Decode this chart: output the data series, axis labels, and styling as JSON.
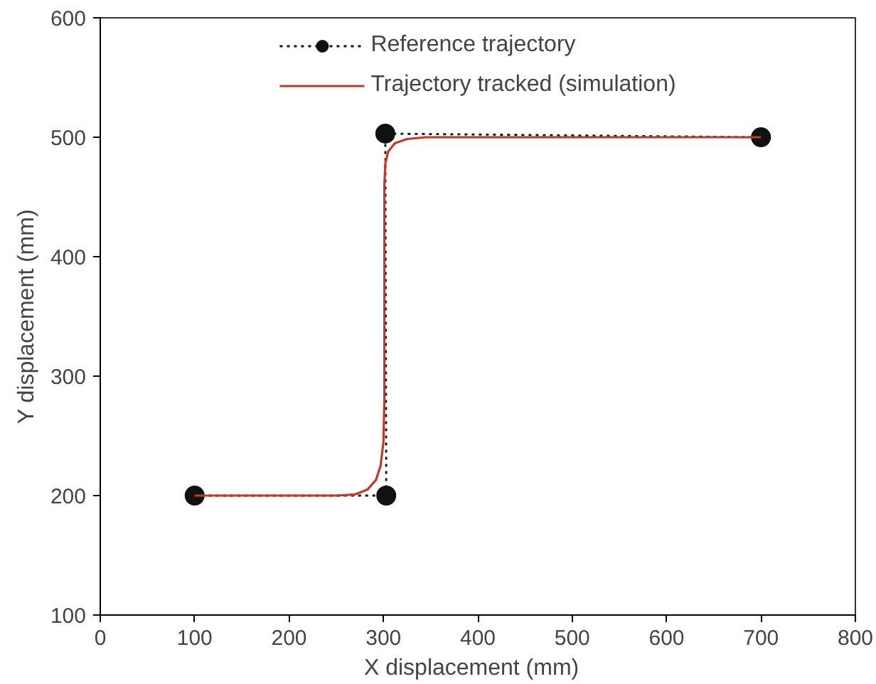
{
  "chart_data": {
    "type": "line",
    "xlabel": "X displacement   (mm)",
    "ylabel": "Y displacement (mm)",
    "xlim": [
      0,
      800
    ],
    "ylim": [
      100,
      600
    ],
    "xticks": [
      0,
      100,
      200,
      300,
      400,
      500,
      600,
      700,
      800
    ],
    "yticks": [
      100,
      200,
      300,
      400,
      500,
      600
    ],
    "grid": false,
    "legend": "top",
    "series": [
      {
        "name": "Reference trajectory",
        "color": "#111111",
        "marker": "circle",
        "line_style": "dotted",
        "x": [
          100,
          303,
          302,
          700
        ],
        "values": [
          200,
          200,
          503,
          500
        ]
      },
      {
        "name": "Trajectory tracked (simulation)",
        "color": "#c0392b",
        "marker": "none",
        "line_style": "solid",
        "x": [
          100,
          250,
          270,
          283,
          292,
          297,
          300,
          301,
          301,
          301,
          302,
          305,
          312,
          325,
          345,
          500,
          700
        ],
        "values": [
          200,
          200,
          201,
          205,
          213,
          225,
          245,
          280,
          400,
          460,
          478,
          488,
          495,
          498.5,
          500,
          500,
          500
        ]
      }
    ]
  }
}
